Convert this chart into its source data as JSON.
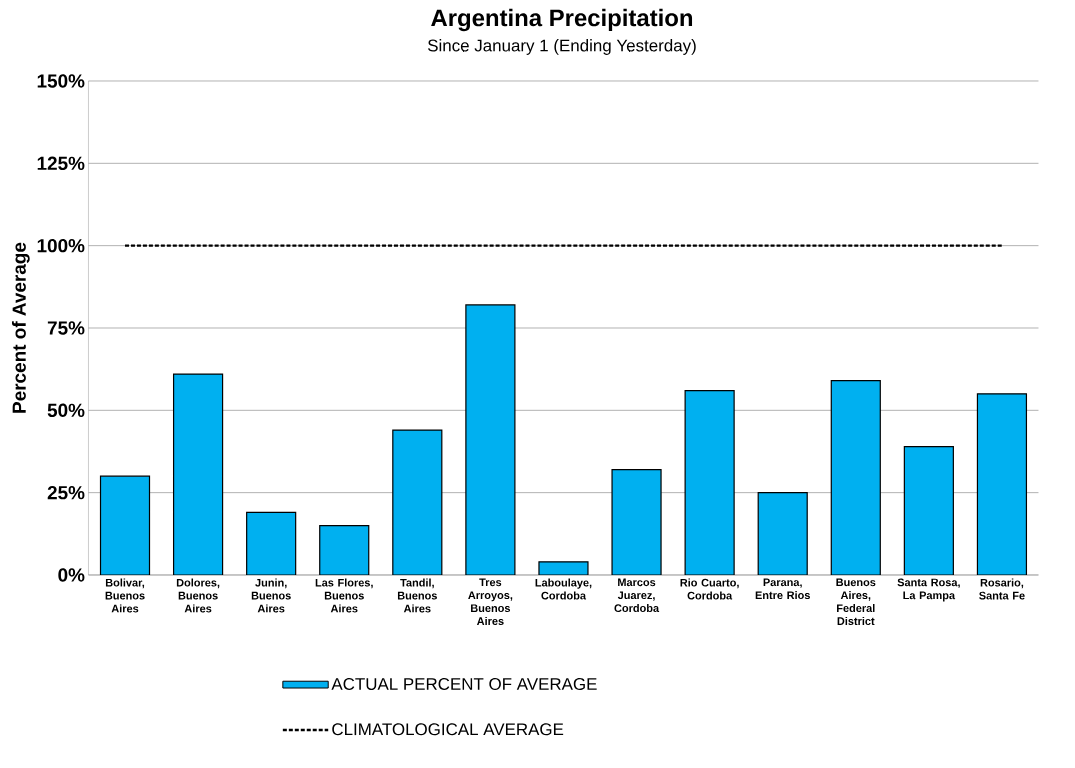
{
  "chart_data": {
    "type": "bar",
    "title": "Argentina Precipitation",
    "subtitle": "Since January 1 (Ending Yesterday)",
    "ylabel": "Percent of Average",
    "categories": [
      "Bolivar, Buenos Aires",
      "Dolores, Buenos Aires",
      "Junin, Buenos Aires",
      "Las Flores, Buenos Aires",
      "Tandil, Buenos Aires",
      "Tres Arroyos, Buenos Aires",
      "Laboulaye, Cordoba",
      "Marcos Juarez, Cordoba",
      "Rio Cuarto, Cordoba",
      "Parana, Entre Rios",
      "Buenos Aires, Federal District",
      "Santa Rosa, La Pampa",
      "Rosario, Santa Fe"
    ],
    "series": [
      {
        "name": "ACTUAL PERCENT OF AVERAGE",
        "color": "#00b0f0",
        "values": [
          30,
          61,
          19,
          15,
          44,
          82,
          4,
          32,
          56,
          25,
          59,
          39,
          55
        ]
      }
    ],
    "ylim": [
      0,
      150
    ],
    "yticks": [
      {
        "value": 0,
        "label": "0%"
      },
      {
        "value": 25,
        "label": "25%"
      },
      {
        "value": 50,
        "label": "50%"
      },
      {
        "value": 75,
        "label": "75%"
      },
      {
        "value": 100,
        "label": "100%"
      },
      {
        "value": 125,
        "label": "125%"
      },
      {
        "value": 150,
        "label": "150%"
      }
    ],
    "ref_lines": [
      {
        "axis": "y",
        "value": 100,
        "label": "CLIMATOLOGICAL AVERAGE",
        "color": "#000000",
        "line_style": "dashed"
      }
    ],
    "grid": "y",
    "legend": "bottom"
  }
}
